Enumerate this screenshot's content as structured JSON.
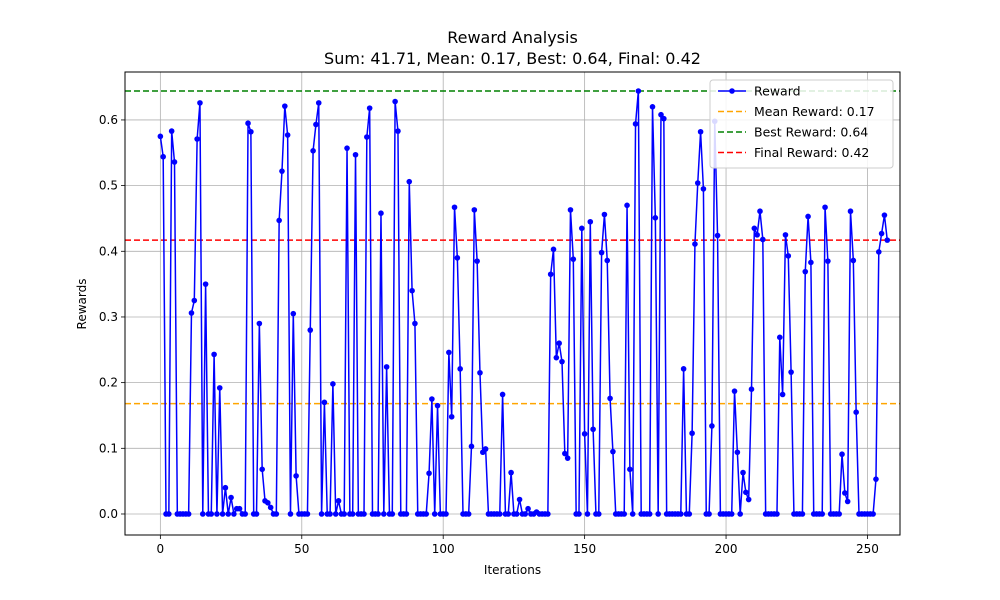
{
  "chart_data": {
    "type": "line",
    "title": "Reward Analysis",
    "subtitle": "Sum: 41.71, Mean: 0.17, Best: 0.64, Final: 0.42",
    "xlabel": "Iterations",
    "ylabel": "Rewards",
    "xlim": [
      -12.5,
      261.5
    ],
    "ylim": [
      -0.032,
      0.673
    ],
    "xticks": [
      0,
      50,
      100,
      150,
      200,
      250
    ],
    "yticks": [
      0.0,
      0.1,
      0.2,
      0.3,
      0.4,
      0.5,
      0.6
    ],
    "ytick_labels": [
      "0.0",
      "0.1",
      "0.2",
      "0.3",
      "0.4",
      "0.5",
      "0.6"
    ],
    "grid": true,
    "legend_position": "top-right",
    "series": [
      {
        "name": "Reward",
        "color": "#0000ff",
        "marker": "circle",
        "values": [
          0.575,
          0.544,
          0,
          0,
          0.583,
          0.536,
          0,
          0,
          0,
          0,
          0,
          0.306,
          0.325,
          0.571,
          0.626,
          0,
          0.35,
          0,
          0,
          0.243,
          0,
          0.192,
          0,
          0.04,
          0,
          0.025,
          0,
          0.008,
          0.008,
          0,
          0,
          0.595,
          0.582,
          0,
          0,
          0.29,
          0.068,
          0.02,
          0.017,
          0.01,
          0,
          0,
          0.447,
          0.522,
          0.621,
          0.577,
          0,
          0.305,
          0.058,
          0,
          0,
          0,
          0,
          0.28,
          0.553,
          0.593,
          0.626,
          0,
          0.17,
          0,
          0,
          0.198,
          0,
          0.02,
          0,
          0,
          0.557,
          0,
          0,
          0.547,
          0,
          0,
          0,
          0.574,
          0.618,
          0,
          0,
          0,
          0.458,
          0,
          0.224,
          0,
          0,
          0.628,
          0.583,
          0,
          0,
          0,
          0.506,
          0.34,
          0.29,
          0,
          0,
          0,
          0,
          0.062,
          0.175,
          0,
          0.165,
          0,
          0,
          0,
          0.246,
          0.148,
          0.467,
          0.39,
          0.221,
          0,
          0,
          0,
          0.103,
          0.463,
          0.385,
          0.215,
          0.094,
          0.099,
          0,
          0,
          0,
          0,
          0,
          0.182,
          0,
          0,
          0.063,
          0,
          0,
          0.022,
          0,
          0,
          0.008,
          0,
          0,
          0.003,
          0,
          0,
          0,
          0,
          0.365,
          0.403,
          0.238,
          0.26,
          0.232,
          0.092,
          0.085,
          0.463,
          0.388,
          0,
          0,
          0.435,
          0.122,
          0,
          0.445,
          0.129,
          0,
          0,
          0.398,
          0.456,
          0.386,
          0.176,
          0.095,
          0,
          0,
          0,
          0,
          0.47,
          0.068,
          0,
          0.594,
          0.644,
          0,
          0,
          0,
          0,
          0.62,
          0.451,
          0,
          0.608,
          0.602,
          0,
          0,
          0,
          0,
          0,
          0,
          0.221,
          0,
          0,
          0.123,
          0.411,
          0.504,
          0.582,
          0.495,
          0,
          0,
          0.134,
          0.598,
          0.424,
          0,
          0,
          0,
          0,
          0,
          0.187,
          0.094,
          0,
          0.063,
          0.033,
          0.022,
          0.19,
          0.435,
          0.425,
          0.461,
          0.418,
          0,
          0,
          0,
          0,
          0,
          0.269,
          0.182,
          0.425,
          0.393,
          0.216,
          0,
          0,
          0,
          0,
          0.369,
          0.453,
          0.383,
          0,
          0,
          0,
          0,
          0.467,
          0.385,
          0,
          0,
          0,
          0,
          0.091,
          0.032,
          0.019,
          0.461,
          0.386,
          0.155,
          0,
          0,
          0,
          0,
          0,
          0,
          0.053,
          0.399,
          0.427,
          0.455,
          0.417
        ]
      },
      {
        "name": "Mean Reward: 0.17",
        "color": "#ffa500",
        "style": "dashed",
        "y": 0.168
      },
      {
        "name": "Best Reward: 0.64",
        "color": "#008000",
        "style": "dashed",
        "y": 0.644
      },
      {
        "name": "Final Reward: 0.42",
        "color": "#ff0000",
        "style": "dashed",
        "y": 0.417
      }
    ]
  }
}
